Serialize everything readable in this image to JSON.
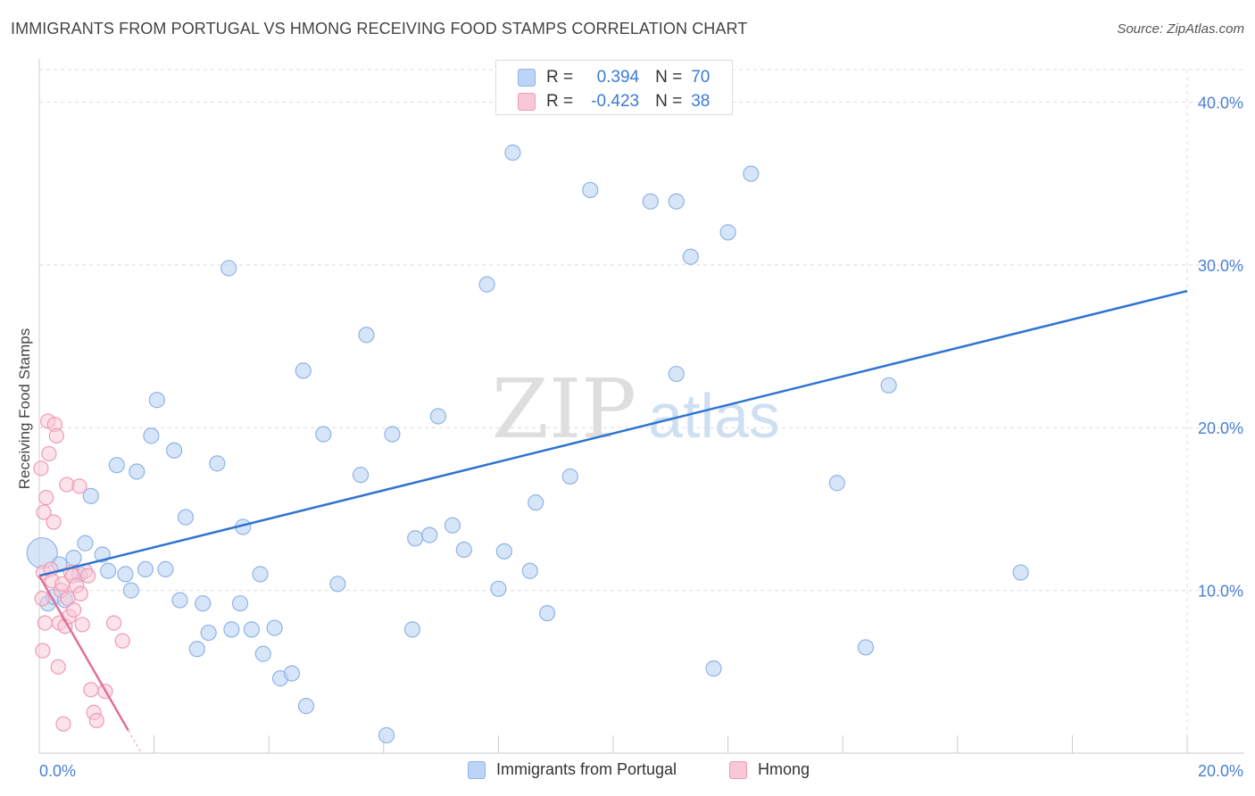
{
  "title": "IMMIGRANTS FROM PORTUGAL VS HMONG RECEIVING FOOD STAMPS CORRELATION CHART",
  "source": "Source: ZipAtlas.com",
  "watermark": {
    "zip": "ZIP",
    "atlas": "atlas"
  },
  "legend": {
    "r_label": "R =",
    "n_label": "N =",
    "rows": [
      {
        "r": "0.394",
        "n": "70"
      },
      {
        "r": "-0.423",
        "n": "38"
      }
    ]
  },
  "colors": {
    "portugal_fill": "#bcd4f5",
    "portugal_stroke": "#8fb4e6",
    "portugal_line": "#2f74d0",
    "hmong_fill": "#f9c8d6",
    "hmong_stroke": "#ef9ab4",
    "hmong_line": "#e0709a",
    "tick_label": "#4a7fd4",
    "grid": "#dcdcdc"
  },
  "chart_data": {
    "type": "scatter",
    "title": "IMMIGRANTS FROM PORTUGAL VS HMONG RECEIVING FOOD STAMPS CORRELATION CHART",
    "xlabel": "",
    "ylabel": "Receiving Food Stamps",
    "xlim": [
      0,
      20
    ],
    "ylim": [
      0,
      42
    ],
    "x_tick_labels": [
      {
        "value": 0,
        "label": "0.0%"
      },
      {
        "value": 20,
        "label": "20.0%"
      }
    ],
    "y_tick_labels": [
      {
        "value": 10,
        "label": "10.0%"
      },
      {
        "value": 20,
        "label": "20.0%"
      },
      {
        "value": 30,
        "label": "30.0%"
      },
      {
        "value": 40,
        "label": "40.0%"
      }
    ],
    "grid": true,
    "legend_position": "top-center",
    "series": [
      {
        "name": "Immigrants from Portugal",
        "color": "#bcd4f5",
        "stats": {
          "R": 0.394,
          "N": 70
        },
        "trendline": {
          "x": [
            0,
            20
          ],
          "y": [
            10.9,
            28.4
          ]
        },
        "points": [
          [
            0.05,
            12.3
          ],
          [
            0.15,
            9.2
          ],
          [
            0.25,
            9.6
          ],
          [
            0.35,
            11.6
          ],
          [
            0.45,
            9.4
          ],
          [
            0.6,
            12.0
          ],
          [
            0.7,
            11.0
          ],
          [
            0.8,
            12.9
          ],
          [
            0.9,
            15.8
          ],
          [
            1.1,
            12.2
          ],
          [
            1.2,
            11.2
          ],
          [
            1.35,
            17.7
          ],
          [
            1.5,
            11.0
          ],
          [
            1.6,
            10.0
          ],
          [
            1.7,
            17.3
          ],
          [
            1.85,
            11.3
          ],
          [
            1.95,
            19.5
          ],
          [
            2.05,
            21.7
          ],
          [
            2.2,
            11.3
          ],
          [
            2.35,
            18.6
          ],
          [
            2.45,
            9.4
          ],
          [
            2.55,
            14.5
          ],
          [
            2.75,
            6.4
          ],
          [
            2.85,
            9.2
          ],
          [
            2.95,
            7.4
          ],
          [
            3.1,
            17.8
          ],
          [
            3.3,
            29.8
          ],
          [
            3.35,
            7.6
          ],
          [
            3.5,
            9.2
          ],
          [
            3.55,
            13.9
          ],
          [
            3.7,
            7.6
          ],
          [
            3.85,
            11.0
          ],
          [
            3.9,
            6.1
          ],
          [
            4.1,
            7.7
          ],
          [
            4.2,
            4.6
          ],
          [
            4.4,
            4.9
          ],
          [
            4.6,
            23.5
          ],
          [
            4.65,
            2.9
          ],
          [
            4.95,
            19.6
          ],
          [
            5.2,
            10.4
          ],
          [
            5.6,
            17.1
          ],
          [
            5.7,
            25.7
          ],
          [
            6.05,
            1.1
          ],
          [
            6.15,
            19.6
          ],
          [
            6.5,
            7.6
          ],
          [
            6.55,
            13.2
          ],
          [
            6.8,
            13.4
          ],
          [
            6.95,
            20.7
          ],
          [
            7.2,
            14.0
          ],
          [
            7.4,
            12.5
          ],
          [
            7.8,
            28.8
          ],
          [
            8.0,
            10.1
          ],
          [
            8.1,
            12.4
          ],
          [
            8.25,
            36.9
          ],
          [
            8.55,
            11.2
          ],
          [
            8.65,
            15.4
          ],
          [
            8.85,
            8.6
          ],
          [
            9.25,
            17.0
          ],
          [
            9.6,
            34.6
          ],
          [
            10.65,
            33.9
          ],
          [
            11.1,
            23.3
          ],
          [
            11.1,
            33.9
          ],
          [
            11.35,
            30.5
          ],
          [
            11.75,
            5.2
          ],
          [
            12.0,
            32.0
          ],
          [
            12.4,
            35.6
          ],
          [
            13.9,
            16.6
          ],
          [
            14.4,
            6.5
          ],
          [
            14.8,
            22.6
          ],
          [
            17.1,
            11.1
          ]
        ]
      },
      {
        "name": "Hmong",
        "color": "#f9c8d6",
        "stats": {
          "R": -0.423,
          "N": 38
        },
        "trendline": {
          "x": [
            0,
            1.55
          ],
          "y": [
            10.9,
            1.4
          ]
        },
        "points": [
          [
            0.03,
            17.5
          ],
          [
            0.05,
            9.5
          ],
          [
            0.06,
            6.3
          ],
          [
            0.07,
            11.1
          ],
          [
            0.08,
            14.8
          ],
          [
            0.1,
            8.0
          ],
          [
            0.12,
            15.7
          ],
          [
            0.15,
            20.4
          ],
          [
            0.17,
            18.4
          ],
          [
            0.2,
            11.3
          ],
          [
            0.22,
            10.6
          ],
          [
            0.25,
            14.2
          ],
          [
            0.27,
            20.2
          ],
          [
            0.3,
            19.5
          ],
          [
            0.33,
            5.3
          ],
          [
            0.35,
            8.0
          ],
          [
            0.38,
            10.0
          ],
          [
            0.4,
            10.4
          ],
          [
            0.42,
            1.8
          ],
          [
            0.45,
            7.8
          ],
          [
            0.48,
            16.5
          ],
          [
            0.5,
            9.5
          ],
          [
            0.52,
            8.4
          ],
          [
            0.55,
            11.1
          ],
          [
            0.58,
            10.9
          ],
          [
            0.6,
            8.8
          ],
          [
            0.65,
            10.3
          ],
          [
            0.7,
            16.4
          ],
          [
            0.72,
            9.8
          ],
          [
            0.75,
            7.9
          ],
          [
            0.8,
            11.2
          ],
          [
            0.85,
            10.9
          ],
          [
            0.9,
            3.9
          ],
          [
            0.95,
            2.5
          ],
          [
            1.0,
            2.0
          ],
          [
            1.15,
            3.8
          ],
          [
            1.3,
            8.0
          ],
          [
            1.45,
            6.9
          ]
        ]
      }
    ]
  }
}
